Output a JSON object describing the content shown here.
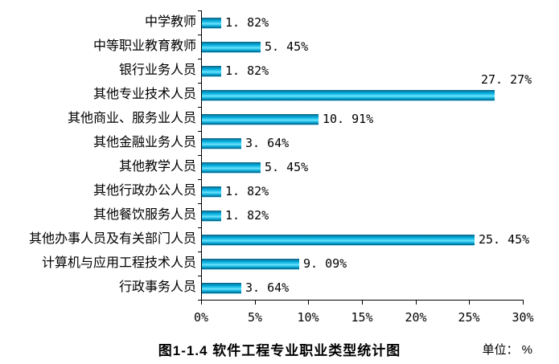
{
  "chart_data": {
    "type": "bar",
    "orientation": "horizontal",
    "title": "图1-1.4 软件工程专业职业类型统计图",
    "unit_label": "单位： %",
    "categories": [
      "中学教师",
      "中等职业教育教师",
      "银行业务人员",
      "其他专业技术人员",
      "其他商业、服务业人员",
      "其他金融业务人员",
      "其他教学人员",
      "其他行政办公人员",
      "其他餐饮服务人员",
      "其他办事人员及有关部门人员",
      "计算机与应用工程技术人员",
      "行政事务人员"
    ],
    "values": [
      1.82,
      5.45,
      1.82,
      27.27,
      10.91,
      3.64,
      5.45,
      1.82,
      1.82,
      25.45,
      9.09,
      3.64
    ],
    "value_labels": [
      "1. 82%",
      "5. 45%",
      "1. 82%",
      "27. 27%",
      "10. 91%",
      "3. 64%",
      "5. 45%",
      "1. 82%",
      "1. 82%",
      "25. 45%",
      "9. 09%",
      "3. 64%"
    ],
    "x_ticks": [
      "0%",
      "5%",
      "10%",
      "15%",
      "20%",
      "25%",
      "30%"
    ],
    "xlim": [
      0,
      30
    ],
    "x_tick_step": 5,
    "grid": false,
    "legend": false,
    "colors": {
      "bar_edge_dark": "#0a5a7a",
      "bar_mid": "#00a9d9",
      "bar_bright": "#6fe4fc",
      "bar_bottom_highlight": "#a8dff0",
      "axis": "#000000",
      "text": "#000000",
      "background": "#ffffff"
    }
  }
}
